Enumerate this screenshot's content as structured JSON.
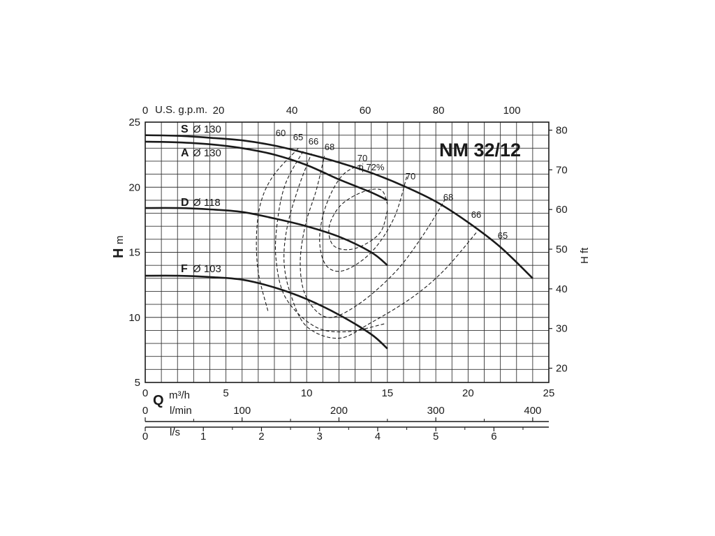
{
  "chart_data": {
    "type": "line",
    "title": "NM 32/12",
    "left_axis": {
      "letter": "H",
      "unit": "m",
      "range": [
        5,
        25
      ],
      "ticks": [
        5,
        10,
        15,
        20,
        25
      ]
    },
    "right_axis": {
      "label": "H ft",
      "ticks": [
        20,
        30,
        40,
        50,
        60,
        70,
        80
      ]
    },
    "top_axis": {
      "label": "U.S. g.p.m.",
      "ticks": [
        0,
        20,
        40,
        60,
        80,
        100
      ]
    },
    "x_axis": {
      "letter": "Q",
      "unit_m3h": "m³/h",
      "range": [
        0,
        25
      ],
      "ticks": [
        0,
        5,
        10,
        15,
        20,
        25
      ],
      "lmin_label": "l/min",
      "lmin_ticks": [
        0,
        100,
        200,
        300,
        400
      ],
      "ls_label": "l/s",
      "ls_ticks": [
        0,
        1,
        2,
        3,
        4,
        5,
        6
      ]
    },
    "grid": true,
    "series": [
      {
        "name": "S",
        "diameter": "Ø 130",
        "x": [
          0,
          2,
          4,
          6,
          8,
          10,
          12,
          14,
          16,
          18,
          20,
          22,
          24
        ],
        "y": [
          24.0,
          23.95,
          23.8,
          23.6,
          23.2,
          22.6,
          21.9,
          21.1,
          20.1,
          18.9,
          17.3,
          15.4,
          13.0
        ]
      },
      {
        "name": "A",
        "diameter": "Ø 130",
        "x": [
          0,
          2,
          4,
          6,
          8,
          10,
          12,
          14,
          15
        ],
        "y": [
          23.5,
          23.45,
          23.3,
          23.0,
          22.5,
          21.7,
          20.6,
          19.6,
          19.0
        ]
      },
      {
        "name": "D",
        "diameter": "Ø 118",
        "x": [
          0,
          2,
          4,
          6,
          8,
          10,
          12,
          14,
          15
        ],
        "y": [
          18.4,
          18.4,
          18.3,
          18.1,
          17.6,
          17.0,
          16.2,
          15.0,
          14.0
        ]
      },
      {
        "name": "F",
        "diameter": "Ø 103",
        "x": [
          0,
          2,
          4,
          6,
          8,
          10,
          12,
          14,
          15
        ],
        "y": [
          13.2,
          13.2,
          13.1,
          12.9,
          12.3,
          11.4,
          10.2,
          8.7,
          7.6
        ]
      }
    ],
    "efficiency_labels": [
      "60",
      "65",
      "66",
      "68",
      "70",
      "η 72%",
      "70",
      "68",
      "66",
      "65"
    ],
    "efficiency_contours": [
      {
        "label": "60",
        "x": [
          7.6,
          7.0,
          6.9,
          7.2,
          8.0,
          9.5
        ],
        "y": [
          10.5,
          13.5,
          16.5,
          19.0,
          21.0,
          23.0
        ]
      },
      {
        "label": "65",
        "x": [
          14.8,
          12.5,
          10.5,
          8.7,
          8.1,
          8.2,
          8.7,
          9.8
        ],
        "y": [
          9.5,
          8.9,
          9.3,
          11.5,
          14.5,
          17.5,
          20.3,
          22.8
        ]
      },
      {
        "label": "66",
        "x": [
          20.5,
          18.5,
          16.5,
          14.0,
          12.0,
          10.0,
          9.0,
          8.6,
          8.8,
          9.5,
          10.3
        ],
        "y": [
          16.5,
          13.6,
          11.5,
          9.6,
          8.4,
          9.3,
          11.8,
          14.3,
          17.0,
          20.0,
          22.6
        ]
      },
      {
        "label": "68",
        "x": [
          18.6,
          17.2,
          15.5,
          13.2,
          11.3,
          10.0,
          9.6,
          9.9,
          10.6,
          11.1
        ],
        "y": [
          19.1,
          16.3,
          13.5,
          11.0,
          10.0,
          11.5,
          14.0,
          17.0,
          19.8,
          22.4
        ]
      },
      {
        "label": "70",
        "x": [
          16.2,
          15.4,
          14.0,
          12.3,
          11.2,
          10.8,
          11.2,
          12.2,
          13.5
        ],
        "y": [
          20.8,
          17.6,
          15.0,
          13.6,
          14.0,
          16.0,
          18.6,
          20.9,
          21.8
        ]
      },
      {
        "label": "72%",
        "x": [
          15.0,
          14.6,
          13.6,
          12.5,
          11.6,
          11.4,
          12.1,
          13.4,
          14.6,
          15.0
        ],
        "y": [
          18.2,
          16.6,
          15.6,
          15.2,
          15.6,
          17.0,
          18.6,
          19.6,
          19.8,
          18.7
        ]
      }
    ]
  }
}
